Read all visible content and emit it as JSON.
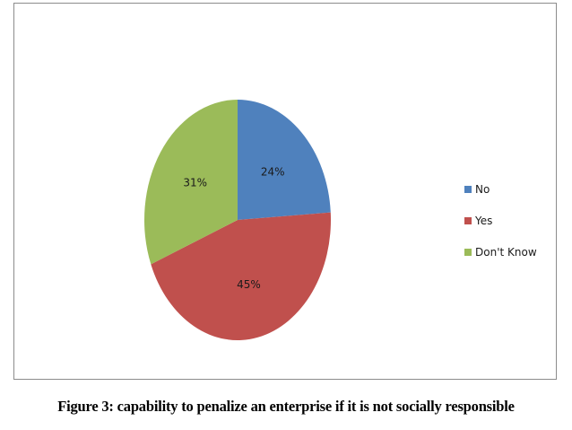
{
  "chart_data": {
    "type": "pie",
    "categories": [
      "No",
      "Yes",
      "Don't Know"
    ],
    "values": [
      24,
      45,
      31
    ],
    "value_labels": [
      "24%",
      "45%",
      "31%"
    ],
    "colors": [
      "#4f81bd",
      "#c0504d",
      "#9bbb59"
    ],
    "start_angle_deg": 0,
    "direction": "clockwise",
    "legend_placement": "right",
    "title": "",
    "xlabel": "",
    "ylabel": ""
  },
  "legend": {
    "items": [
      {
        "label": "No",
        "color": "#4f81bd"
      },
      {
        "label": "Yes",
        "color": "#c0504d"
      },
      {
        "label": "Don't Know",
        "color": "#9bbb59"
      }
    ]
  },
  "caption": "Figure 3: capability to penalize an enterprise if it is not socially responsible"
}
